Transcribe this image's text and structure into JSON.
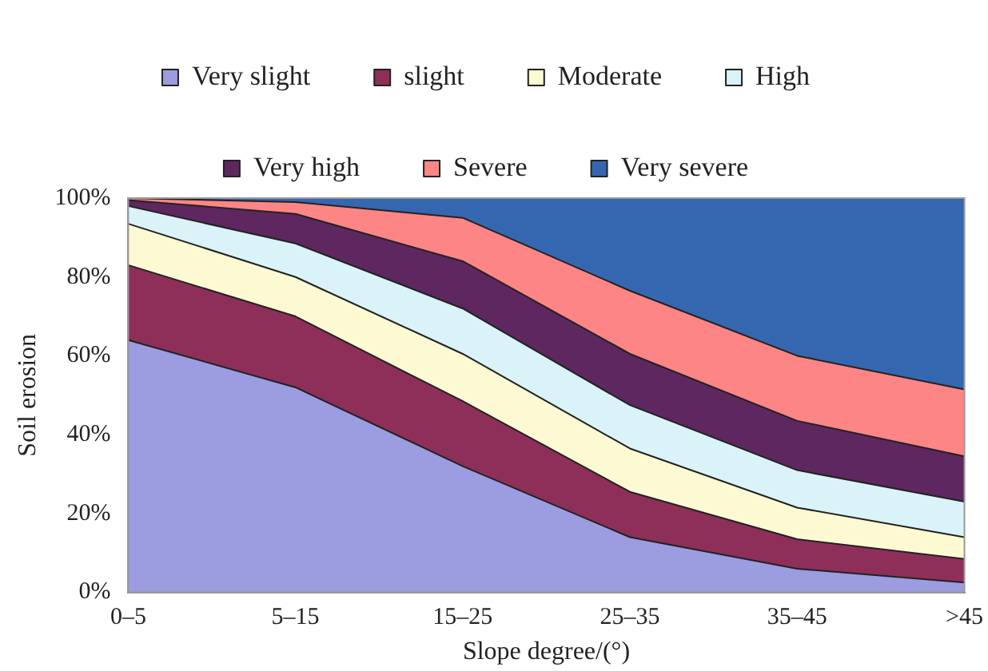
{
  "chart_data": {
    "type": "area",
    "stacked": true,
    "xlabel": "Slope degree/(°)",
    "ylabel": "Soil erosion",
    "categories": [
      "0–5",
      "5–15",
      "15–25",
      "25–35",
      "35–45",
      ">45"
    ],
    "ylim": [
      0,
      100
    ],
    "yticks": [
      {
        "value": 0,
        "label": "0%"
      },
      {
        "value": 20,
        "label": "20%"
      },
      {
        "value": 40,
        "label": "40%"
      },
      {
        "value": 60,
        "label": "60%"
      },
      {
        "value": 80,
        "label": "80%"
      },
      {
        "value": 100,
        "label": "100%"
      }
    ],
    "grid": false,
    "legend": "top",
    "series": [
      {
        "name": "Very slight",
        "color": "#9c9ce0",
        "values": [
          64,
          52,
          32,
          14,
          6,
          2.5
        ]
      },
      {
        "name": "slight",
        "color": "#8e2f5a",
        "values": [
          19,
          18,
          16.5,
          11.5,
          7.5,
          6
        ]
      },
      {
        "name": "Moderate",
        "color": "#fdf9d3",
        "values": [
          10.5,
          10,
          12,
          11,
          8,
          5.5
        ]
      },
      {
        "name": "High",
        "color": "#d9f3f8",
        "values": [
          4.5,
          8.5,
          11.5,
          11,
          9.5,
          9
        ]
      },
      {
        "name": "Very high",
        "color": "#5e2760",
        "values": [
          1.5,
          7.5,
          12,
          13,
          12.5,
          11.5
        ]
      },
      {
        "name": "Severe",
        "color": "#fd8585",
        "values": [
          0.5,
          3,
          11,
          16,
          16.5,
          17
        ]
      },
      {
        "name": "Very severe",
        "color": "#3567b0",
        "values": [
          0,
          1,
          5,
          23.5,
          40,
          48.5
        ]
      }
    ]
  }
}
